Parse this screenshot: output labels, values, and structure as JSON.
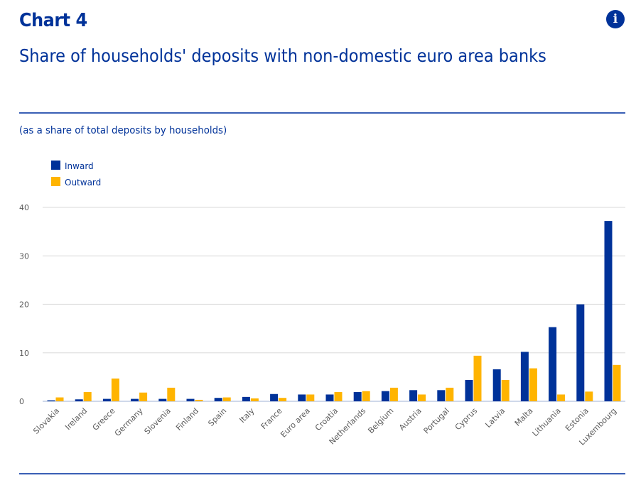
{
  "header": {
    "chart_number": "Chart 4",
    "title": "Share of households' deposits with non-domestic euro area banks",
    "info_icon": "info-icon",
    "info_symbol": "i"
  },
  "colors": {
    "inward": "#003299",
    "outward": "#ffb400",
    "grid": "#e0e0e0",
    "title": "#003299"
  },
  "chart_data": {
    "type": "bar",
    "title": "Share of households' deposits with non-domestic euro area banks",
    "subtitle": "(as a share of total deposits by households)",
    "xlabel": "",
    "ylabel": "",
    "ylim": [
      0,
      40
    ],
    "yticks": [
      0,
      10,
      20,
      30,
      40
    ],
    "grid": true,
    "legend_position": "top-left",
    "categories": [
      "Slovakia",
      "Ireland",
      "Greece",
      "Germany",
      "Slovenia",
      "Finland",
      "Spain",
      "Italy",
      "France",
      "Euro area",
      "Croatia",
      "Netherlands",
      "Belgium",
      "Austria",
      "Portugal",
      "Cyprus",
      "Latvia",
      "Malta",
      "Lithuania",
      "Estonia",
      "Luxembourg"
    ],
    "series": [
      {
        "name": "Inward",
        "values": [
          0.2,
          0.4,
          0.5,
          0.5,
          0.5,
          0.5,
          0.7,
          0.9,
          1.5,
          1.4,
          1.4,
          1.9,
          2.1,
          2.3,
          2.3,
          4.4,
          6.6,
          10.2,
          15.3,
          20.0,
          37.2
        ]
      },
      {
        "name": "Outward",
        "values": [
          0.8,
          1.9,
          4.7,
          1.8,
          2.8,
          0.3,
          0.8,
          0.6,
          0.7,
          1.4,
          1.9,
          2.1,
          2.8,
          1.4,
          2.8,
          9.4,
          4.4,
          6.8,
          1.4,
          2.0,
          7.5
        ]
      }
    ]
  }
}
